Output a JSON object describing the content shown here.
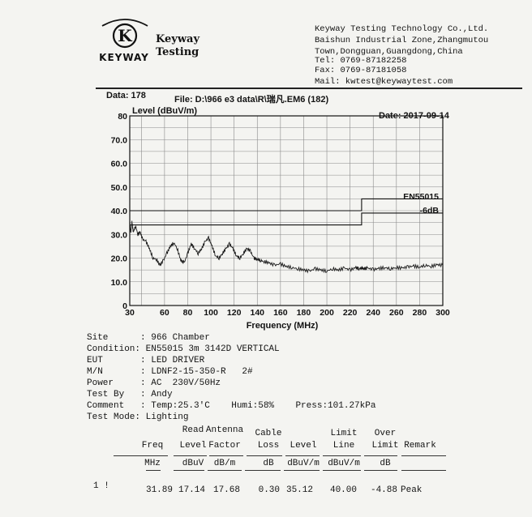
{
  "header": {
    "logo_text": "KEYWAY",
    "logo_letter": "K",
    "brand_1": "Keyway",
    "brand_2": "Testing",
    "company": [
      "Keyway Testing Technology Co.,Ltd.",
      "Baishun Industrial Zone,Zhangmutou",
      "Town,Dongguan,Guangdong,China",
      "Tel: 0769-87182258",
      "Fax: 0769-87181058",
      "Mail: kwtest@keywaytest.com"
    ]
  },
  "meta": {
    "data_no": "Data: 178",
    "file": "File: D:\\966 e3 data\\R\\瑞凡.EM6  (182)",
    "date": "Date: 2017-09-14"
  },
  "chart_data": {
    "type": "line",
    "ylabel": "Level (dBuV/m)",
    "xlabel": "Frequency (MHz)",
    "xlim": [
      30,
      300
    ],
    "ylim": [
      0,
      80
    ],
    "x_ticks": [
      30,
      60,
      80,
      100,
      120,
      140,
      160,
      180,
      200,
      220,
      240,
      260,
      280,
      300
    ],
    "y_ticks": [
      {
        "v": 0,
        "label": "0"
      },
      {
        "v": 10,
        "label": "10.0"
      },
      {
        "v": 20,
        "label": "20.0"
      },
      {
        "v": 30,
        "label": "30.0"
      },
      {
        "v": 40,
        "label": "40.0"
      },
      {
        "v": 50,
        "label": "50.0"
      },
      {
        "v": 60,
        "label": "60.0"
      },
      {
        "v": 70,
        "label": "70.0"
      },
      {
        "v": 80,
        "label": "80"
      }
    ],
    "grid": true,
    "limit_lines": [
      {
        "name": "EN55015",
        "points": [
          [
            30,
            40
          ],
          [
            230,
            40
          ],
          [
            230,
            45
          ],
          [
            300,
            45
          ]
        ]
      },
      {
        "name": "-6dB",
        "points": [
          [
            30,
            34
          ],
          [
            230,
            34
          ],
          [
            230,
            39
          ],
          [
            300,
            39
          ]
        ]
      }
    ],
    "series": [
      {
        "points": [
          [
            30,
            36
          ],
          [
            30.8,
            30.5
          ],
          [
            31.9,
            35.1
          ],
          [
            33,
            31
          ],
          [
            35,
            33.5
          ],
          [
            37,
            30
          ],
          [
            39,
            31
          ],
          [
            41,
            28
          ],
          [
            44,
            27
          ],
          [
            47,
            24
          ],
          [
            50,
            20
          ],
          [
            53,
            19.5
          ],
          [
            56,
            17
          ],
          [
            59,
            19
          ],
          [
            62,
            22
          ],
          [
            65,
            25
          ],
          [
            68,
            26.5
          ],
          [
            71,
            24
          ],
          [
            74,
            19
          ],
          [
            77,
            18
          ],
          [
            80,
            22
          ],
          [
            83,
            26
          ],
          [
            86,
            24
          ],
          [
            89,
            22
          ],
          [
            92,
            24
          ],
          [
            95,
            27
          ],
          [
            98,
            28.5
          ],
          [
            101,
            25
          ],
          [
            104,
            21
          ],
          [
            107,
            20
          ],
          [
            110,
            22
          ],
          [
            113,
            24
          ],
          [
            116,
            26
          ],
          [
            119,
            24
          ],
          [
            122,
            21
          ],
          [
            125,
            20
          ],
          [
            128,
            22
          ],
          [
            131,
            24
          ],
          [
            134,
            23
          ],
          [
            137,
            20
          ],
          [
            140,
            19.5
          ],
          [
            143,
            19
          ],
          [
            146,
            18.5
          ],
          [
            150,
            18
          ],
          [
            155,
            17
          ],
          [
            160,
            17.5
          ],
          [
            165,
            16.5
          ],
          [
            170,
            16
          ],
          [
            175,
            15.5
          ],
          [
            180,
            15
          ],
          [
            185,
            14.5
          ],
          [
            190,
            15.5
          ],
          [
            195,
            15
          ],
          [
            200,
            14.5
          ],
          [
            205,
            15.5
          ],
          [
            210,
            15
          ],
          [
            215,
            15.8
          ],
          [
            220,
            15
          ],
          [
            225,
            16
          ],
          [
            228,
            15.5
          ],
          [
            230,
            16
          ],
          [
            232,
            15.5
          ],
          [
            235,
            15.8
          ],
          [
            240,
            15.2
          ],
          [
            245,
            15.6
          ],
          [
            250,
            16
          ],
          [
            255,
            15.5
          ],
          [
            260,
            16
          ],
          [
            265,
            15.8
          ],
          [
            270,
            16.3
          ],
          [
            275,
            16.6
          ],
          [
            280,
            16.2
          ],
          [
            285,
            17
          ],
          [
            290,
            16.5
          ],
          [
            295,
            17.2
          ],
          [
            300,
            17
          ]
        ]
      }
    ],
    "annotations": [
      "EN55015",
      "-6dB"
    ]
  },
  "conditions": [
    "Site      : 966 Chamber",
    "Condition: EN55015 3m 3142D VERTICAL",
    "EUT       : LED DRIVER",
    "M/N       : LDNF2-15-350-R   2#",
    "Power     : AC  230V/50Hz",
    "Test By   : Andy",
    "Comment   : Temp:25.3'C    Humi:58%    Press:101.27kPa",
    "Test Mode: Lighting"
  ],
  "table": {
    "headers": [
      {
        "l1": "",
        "l2": "Freq",
        "unit": "MHz"
      },
      {
        "l1": "Read",
        "l2": "Level",
        "unit": "dBuV"
      },
      {
        "l1": "Antenna",
        "l2": "Factor",
        "unit": "dB/m"
      },
      {
        "l1": "Cable",
        "l2": "Loss",
        "unit": "dB"
      },
      {
        "l1": "",
        "l2": "Level",
        "unit": "dBuV/m"
      },
      {
        "l1": "Limit",
        "l2": "Line",
        "unit": "dBuV/m"
      },
      {
        "l1": "Over",
        "l2": "Limit",
        "unit": "dB"
      },
      {
        "l1": "",
        "l2": "Remark",
        "unit": ""
      }
    ],
    "rows": [
      {
        "idx": "1 !",
        "freq": "31.89",
        "read": "17.14",
        "ant": "17.68",
        "cable": "0.30",
        "level": "35.12",
        "limit": "40.00",
        "over": "-4.88",
        "remark": "Peak"
      }
    ]
  }
}
